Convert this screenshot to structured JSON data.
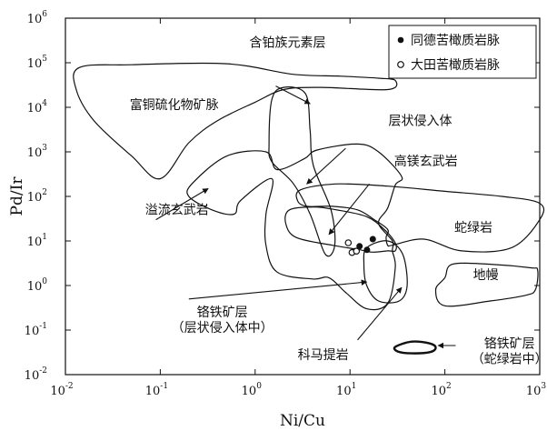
{
  "chart_data": {
    "type": "scatter",
    "title": "",
    "xlabel": "Ni/Cu",
    "ylabel": "Pd/Ir",
    "xscale": "log",
    "yscale": "log",
    "xlim": [
      0.01,
      1000
    ],
    "ylim": [
      0.01,
      1000000
    ],
    "x_ticks": [
      {
        "value": 0.01,
        "base": "10",
        "exp": "-2"
      },
      {
        "value": 0.1,
        "base": "10",
        "exp": "-1"
      },
      {
        "value": 1,
        "base": "10",
        "exp": "0"
      },
      {
        "value": 10,
        "base": "10",
        "exp": "1"
      },
      {
        "value": 100,
        "base": "10",
        "exp": "2"
      },
      {
        "value": 1000,
        "base": "10",
        "exp": "3"
      }
    ],
    "y_ticks": [
      {
        "value": 0.01,
        "base": "10",
        "exp": "-2"
      },
      {
        "value": 0.1,
        "base": "10",
        "exp": "-1"
      },
      {
        "value": 1,
        "base": "10",
        "exp": "0"
      },
      {
        "value": 10,
        "base": "10",
        "exp": "1"
      },
      {
        "value": 100,
        "base": "10",
        "exp": "2"
      },
      {
        "value": 1000,
        "base": "10",
        "exp": "3"
      },
      {
        "value": 10000,
        "base": "10",
        "exp": "4"
      },
      {
        "value": 100000,
        "base": "10",
        "exp": "5"
      },
      {
        "value": 1000000,
        "base": "10",
        "exp": "6"
      }
    ],
    "legend_position": "top-right",
    "series": [
      {
        "name": "同德苦橄质岩脉",
        "marker": "filled-circle",
        "points": [
          [
            17.4,
            11.0
          ],
          [
            12.6,
            7.6
          ],
          [
            11.2,
            5.9
          ],
          [
            15.1,
            6.3
          ]
        ]
      },
      {
        "name": "大田苦橄质岩脉",
        "marker": "open-circle",
        "points": [
          [
            9.6,
            9.1
          ],
          [
            10.5,
            5.5
          ],
          [
            11.7,
            5.9
          ]
        ]
      }
    ],
    "fields": [
      {
        "label": "富铜硫化物矿脉",
        "outline": [
          [
            0.014,
            78000
          ],
          [
            0.05,
            90000
          ],
          [
            0.5,
            95000
          ],
          [
            2.5,
            55000
          ],
          [
            8,
            50000
          ],
          [
            20,
            45000
          ],
          [
            30,
            40000
          ],
          [
            25,
            25000
          ],
          [
            5,
            28000
          ],
          [
            2,
            25000
          ],
          [
            1,
            13000
          ],
          [
            0.4,
            5000
          ],
          [
            0.2,
            1600
          ],
          [
            0.1,
            250
          ],
          [
            0.05,
            800
          ],
          [
            0.02,
            5000
          ],
          [
            0.013,
            25000
          ]
        ]
      },
      {
        "label": "含铂族元素层",
        "outline": [
          [
            1.4,
            1500
          ],
          [
            1.5,
            15000
          ],
          [
            2,
            28000
          ],
          [
            3.4,
            20000
          ],
          [
            3.8,
            3000
          ],
          [
            4.1,
            500
          ],
          [
            6.3,
            50
          ],
          [
            6.9,
            8
          ],
          [
            5.5,
            5
          ],
          [
            3.8,
            40
          ],
          [
            2.5,
            200
          ],
          [
            1.5,
            600
          ]
        ]
      },
      {
        "label": "层状侵入体",
        "outline": [
          [
            0.22,
            200
          ],
          [
            0.5,
            800
          ],
          [
            1.3,
            1000
          ],
          [
            1.7,
            400
          ],
          [
            3.3,
            700
          ],
          [
            4.5,
            1100
          ],
          [
            12,
            1500
          ],
          [
            20,
            1000
          ],
          [
            35,
            280
          ],
          [
            30,
            180
          ],
          [
            25,
            55
          ],
          [
            20,
            25
          ],
          [
            28,
            10
          ],
          [
            28,
            6
          ],
          [
            30,
            2.5
          ],
          [
            25,
            0.4
          ],
          [
            15,
            0.3
          ],
          [
            9,
            0.7
          ],
          [
            6,
            1.5
          ],
          [
            4,
            1.4
          ],
          [
            1.7,
            2
          ],
          [
            1.3,
            8
          ],
          [
            1.3,
            40
          ],
          [
            1.5,
            250
          ],
          [
            0.7,
            80
          ],
          [
            0.6,
            40
          ],
          [
            0.35,
            50
          ],
          [
            0.2,
            100
          ]
        ]
      },
      {
        "label": "高镁玄武岩",
        "outline": [
          [
            2.3,
            50
          ],
          [
            4.2,
            58
          ],
          [
            7.2,
            50
          ],
          [
            15,
            35
          ],
          [
            23,
            18
          ],
          [
            30,
            9
          ],
          [
            30,
            6
          ],
          [
            25,
            6
          ],
          [
            17,
            5.6
          ],
          [
            12,
            6.5
          ],
          [
            6.5,
            8
          ],
          [
            2.7,
            12
          ],
          [
            2.1,
            25
          ]
        ]
      },
      {
        "label": "蛇绿岩",
        "outline": [
          [
            3,
            140
          ],
          [
            7,
            190
          ],
          [
            25,
            170
          ],
          [
            100,
            130
          ],
          [
            400,
            100
          ],
          [
            1000,
            70
          ],
          [
            1000,
            30
          ],
          [
            500,
            7
          ],
          [
            150,
            6
          ],
          [
            60,
            11
          ],
          [
            28,
            8
          ],
          [
            25,
            8
          ],
          [
            24,
            12
          ],
          [
            25,
            18
          ],
          [
            18,
            30
          ],
          [
            12,
            50
          ],
          [
            6.5,
            60
          ],
          [
            3.5,
            60
          ],
          [
            2.8,
            80
          ]
        ]
      },
      {
        "label": "地幔",
        "outline": [
          [
            120,
            3
          ],
          [
            300,
            3
          ],
          [
            800,
            2.5
          ],
          [
            950,
            2.2
          ],
          [
            900,
            0.8
          ],
          [
            700,
            0.6
          ],
          [
            300,
            0.45
          ],
          [
            100,
            0.35
          ],
          [
            80,
            0.8
          ],
          [
            100,
            1.5
          ]
        ]
      },
      {
        "label": "科马提岩",
        "outline": [
          [
            15,
            7
          ],
          [
            25,
            10
          ],
          [
            36,
            5
          ],
          [
            40,
            1
          ],
          [
            33,
            0.45
          ],
          [
            20,
            0.45
          ],
          [
            15,
            1
          ],
          [
            14,
            3
          ]
        ]
      },
      {
        "label": "铬铁矿层（蛇绿岩中）",
        "outline": [
          [
            45,
            0.055
          ],
          [
            70,
            0.05
          ],
          [
            80,
            0.04
          ],
          [
            70,
            0.032
          ],
          [
            45,
            0.03
          ],
          [
            32,
            0.033
          ],
          [
            30,
            0.042
          ]
        ]
      }
    ],
    "annotations": [
      {
        "text": "富铜硫化物矿脉",
        "lines": [
          "富铜硫化物矿脉"
        ],
        "x": 0.14,
        "y": 9000
      },
      {
        "text": "含铂族元素层",
        "lines": [
          "含铂族元素层"
        ],
        "x": 2.2,
        "y": 230000
      },
      {
        "text": "层状侵入体",
        "lines": [
          "层状侵入体"
        ],
        "x": 55,
        "y": 4000
      },
      {
        "text": "高镁玄武岩",
        "lines": [
          "高镁玄武岩"
        ],
        "x": 63,
        "y": 500
      },
      {
        "text": "溢流玄武岩",
        "lines": [
          "溢流玄武岩"
        ],
        "x": 0.15,
        "y": 40
      },
      {
        "text": "蛇绿岩",
        "lines": [
          "蛇绿岩"
        ],
        "x": 200,
        "y": 16
      },
      {
        "text": "地幔",
        "lines": [
          "地幔"
        ],
        "x": 270,
        "y": 1.4
      },
      {
        "text": "铬铁矿层 层状侵入体中",
        "lines": [
          "铬铁矿层",
          "（层状侵入体中）"
        ],
        "x": 0.45,
        "y": 0.2
      },
      {
        "text": "科马提岩",
        "lines": [
          "科马提岩"
        ],
        "x": 5.2,
        "y": 0.022
      },
      {
        "text": "铬铁矿层 蛇绿岩中",
        "lines": [
          "铬铁矿层",
          "（蛇绿岩中）"
        ],
        "x": 480,
        "y": 0.04
      }
    ],
    "arrows": [
      {
        "from": [
          1.65,
          30000
        ],
        "to": [
          3.8,
          12000
        ]
      },
      {
        "from": [
          9,
          1200
        ],
        "to": [
          3.5,
          190
        ]
      },
      {
        "from": [
          16,
          190
        ],
        "to": [
          6,
          14
        ]
      },
      {
        "from": [
          0.09,
          30
        ],
        "to": [
          0.32,
          150
        ]
      },
      {
        "from": [
          0.2,
          0.5
        ],
        "to": [
          15,
          1.2
        ]
      },
      {
        "from": [
          12,
          0.06
        ],
        "to": [
          35,
          0.9
        ]
      },
      {
        "from": [
          130,
          0.045
        ],
        "to": [
          85,
          0.045
        ]
      }
    ]
  }
}
